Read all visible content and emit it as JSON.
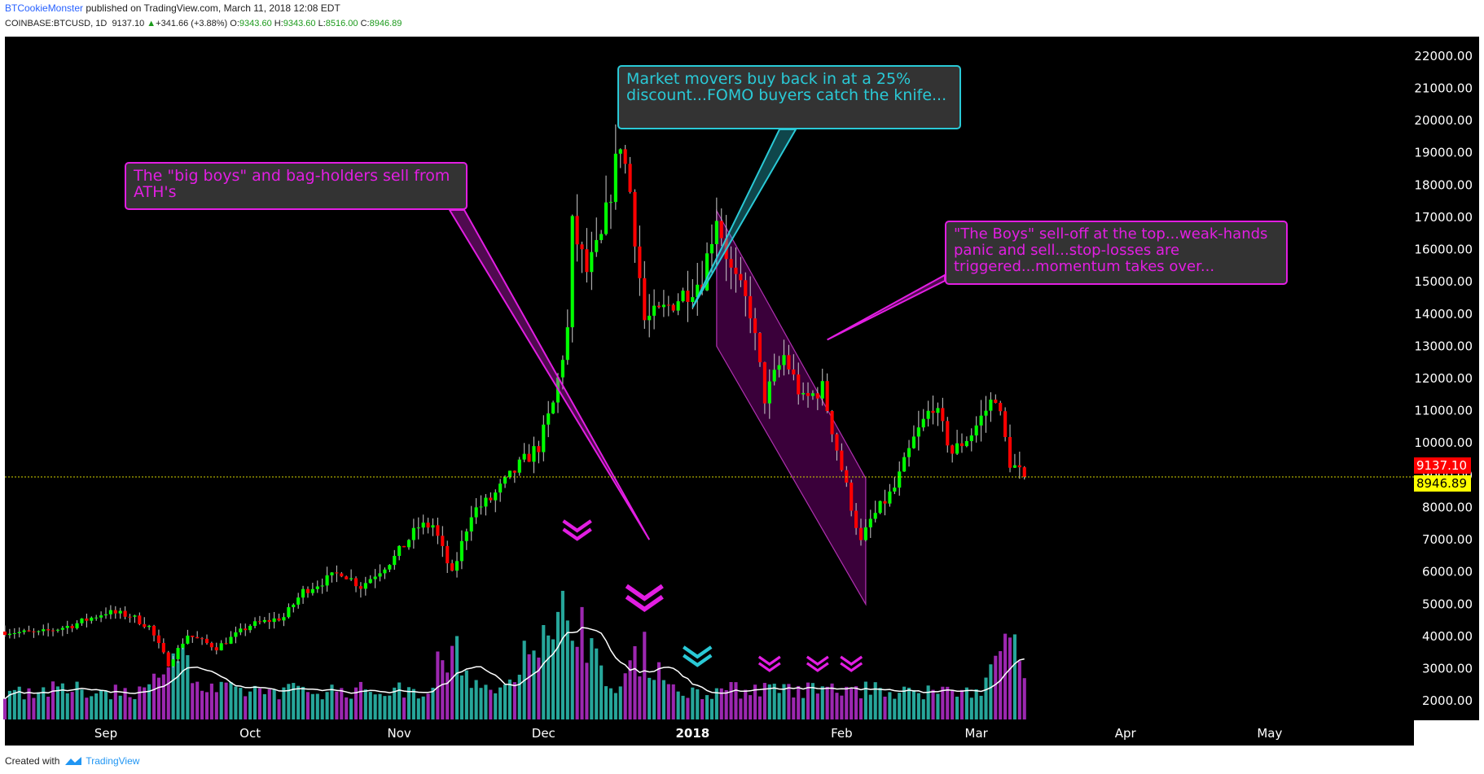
{
  "header": {
    "author": "BTCookieMonster",
    "published": " published on TradingView.com, March 11, 2018 12:08 EDT",
    "symbol": "COINBASE:BTCUSD, 1D",
    "last": "9137.10",
    "change_up_arrow": "▲",
    "change": "+341.66 (+3.88%)",
    "o_label": "O:",
    "o": "9343.60",
    "h_label": "H:",
    "h": "9343.60",
    "l_label": "L:",
    "l": "8516.00",
    "c_label": "C:",
    "c": "8946.89"
  },
  "footer": {
    "created_with": "Created with",
    "brand": "TradingView",
    "brand_icon": "tradingview-logo-icon"
  },
  "annotations": {
    "ath": "The \"big boys\" and bag-holders sell from ATH's",
    "buyback": "Market movers buy back in at a 25% discount...FOMO buyers catch the knife...",
    "selloff": "\"The Boys\" sell-off at the top...weak-hands panic and sell...stop-losses are triggered...momentum takes over..."
  },
  "price_tags": {
    "last": "9137.10",
    "close": "8946.89"
  },
  "colors": {
    "background": "#000000",
    "candle_up": "#00ff00",
    "candle_down": "#ff0000",
    "volume_up": "#26a69a",
    "volume_down": "#9c27b0",
    "magenta": "#e21ee2",
    "cyan": "#2ac9d6",
    "channel_fill": "#800080"
  },
  "chart_data": {
    "type": "candlestick",
    "symbol": "COINBASE:BTCUSD",
    "interval": "1D",
    "y_axis": {
      "ticks": [
        2000,
        3000,
        4000,
        5000,
        6000,
        7000,
        8000,
        9000,
        10000,
        11000,
        12000,
        13000,
        14000,
        15000,
        16000,
        17000,
        18000,
        19000,
        20000,
        21000,
        22000
      ],
      "tick_labels": [
        "2000.00",
        "3000.00",
        "4000.00",
        "5000.00",
        "6000.00",
        "7000.00",
        "8000.00",
        "9000.00",
        "10000.00",
        "11000.00",
        "12000.00",
        "13000.00",
        "14000.00",
        "15000.00",
        "16000.00",
        "17000.00",
        "18000.00",
        "19000.00",
        "20000.00",
        "21000.00",
        "22000.00"
      ],
      "range": [
        1400,
        22600
      ]
    },
    "x_axis": {
      "range": [
        "2017-08-11",
        "2018-05-31"
      ],
      "ticks": [
        {
          "label": "Sep",
          "date": "2017-09-01"
        },
        {
          "label": "Oct",
          "date": "2017-10-01"
        },
        {
          "label": "Nov",
          "date": "2017-11-01"
        },
        {
          "label": "Dec",
          "date": "2017-12-01"
        },
        {
          "label": "2018",
          "date": "2018-01-01",
          "bold": true
        },
        {
          "label": "Feb",
          "date": "2018-02-01"
        },
        {
          "label": "Mar",
          "date": "2018-03-01"
        },
        {
          "label": "Apr",
          "date": "2018-04-01"
        },
        {
          "label": "May",
          "date": "2018-05-01"
        }
      ]
    },
    "close_line": 8946.89,
    "price_path": [
      {
        "date": "2017-08-11",
        "close": 4150
      },
      {
        "date": "2017-08-18",
        "close": 4100
      },
      {
        "date": "2017-08-25",
        "close": 4350
      },
      {
        "date": "2017-09-01",
        "close": 4750
      },
      {
        "date": "2017-09-06",
        "close": 4650
      },
      {
        "date": "2017-09-10",
        "close": 4300
      },
      {
        "date": "2017-09-14",
        "close": 3150
      },
      {
        "date": "2017-09-18",
        "close": 4050
      },
      {
        "date": "2017-09-24",
        "close": 3650
      },
      {
        "date": "2017-10-01",
        "close": 4350
      },
      {
        "date": "2017-10-08",
        "close": 4600
      },
      {
        "date": "2017-10-12",
        "close": 5400
      },
      {
        "date": "2017-10-20",
        "close": 6000
      },
      {
        "date": "2017-10-24",
        "close": 5550
      },
      {
        "date": "2017-10-31",
        "close": 6450
      },
      {
        "date": "2017-11-05",
        "close": 7400
      },
      {
        "date": "2017-11-08",
        "close": 7450
      },
      {
        "date": "2017-11-12",
        "close": 5900
      },
      {
        "date": "2017-11-16",
        "close": 7850
      },
      {
        "date": "2017-11-20",
        "close": 8250
      },
      {
        "date": "2017-11-26",
        "close": 9300
      },
      {
        "date": "2017-11-30",
        "close": 9900
      },
      {
        "date": "2017-12-03",
        "close": 11200
      },
      {
        "date": "2017-12-06",
        "close": 13500
      },
      {
        "date": "2017-12-07",
        "close": 16700
      },
      {
        "date": "2017-12-10",
        "close": 15300
      },
      {
        "date": "2017-12-13",
        "close": 16300
      },
      {
        "date": "2017-12-17",
        "close": 19400
      },
      {
        "date": "2017-12-19",
        "close": 17800
      },
      {
        "date": "2017-12-22",
        "close": 13800
      },
      {
        "date": "2017-12-25",
        "close": 14000
      },
      {
        "date": "2017-12-29",
        "close": 14500
      },
      {
        "date": "2018-01-03",
        "close": 15100
      },
      {
        "date": "2018-01-06",
        "close": 17100
      },
      {
        "date": "2018-01-09",
        "close": 15300
      },
      {
        "date": "2018-01-13",
        "close": 14100
      },
      {
        "date": "2018-01-16",
        "close": 11400
      },
      {
        "date": "2018-01-20",
        "close": 12700
      },
      {
        "date": "2018-01-24",
        "close": 11300
      },
      {
        "date": "2018-01-28",
        "close": 11700
      },
      {
        "date": "2018-02-01",
        "close": 9200
      },
      {
        "date": "2018-02-05",
        "close": 6900
      },
      {
        "date": "2018-02-07",
        "close": 7600
      },
      {
        "date": "2018-02-12",
        "close": 8600
      },
      {
        "date": "2018-02-16",
        "close": 10100
      },
      {
        "date": "2018-02-20",
        "close": 11200
      },
      {
        "date": "2018-02-24",
        "close": 9700
      },
      {
        "date": "2018-02-28",
        "close": 10300
      },
      {
        "date": "2018-03-05",
        "close": 11500
      },
      {
        "date": "2018-03-08",
        "close": 9400
      },
      {
        "date": "2018-03-11",
        "close": 8946.89
      }
    ],
    "volume": {
      "max_label_ratio": 1,
      "peaks": [
        {
          "date": "2017-09-15",
          "rel": 0.95
        },
        {
          "date": "2017-11-12",
          "rel": 0.85
        },
        {
          "date": "2017-11-29",
          "rel": 1.15
        },
        {
          "date": "2017-12-07",
          "rel": 1.45
        },
        {
          "date": "2017-12-22",
          "rel": 0.85
        },
        {
          "date": "2018-02-06",
          "rel": 0.35
        },
        {
          "date": "2018-03-08",
          "rel": 0.85
        }
      ]
    },
    "channel": {
      "upper": [
        {
          "date": "2018-01-06",
          "price": 17200
        },
        {
          "date": "2018-02-06",
          "price": 8900
        }
      ],
      "lower": [
        {
          "date": "2018-01-06",
          "price": 13000
        },
        {
          "date": "2018-02-06",
          "price": 5000
        }
      ]
    },
    "sell_markers": [
      {
        "date": "2017-12-08",
        "color": "magenta",
        "size": "medium"
      },
      {
        "date": "2017-12-22",
        "color": "magenta",
        "size": "large"
      },
      {
        "date": "2018-01-02",
        "color": "cyan",
        "size": "medium"
      },
      {
        "date": "2018-01-17",
        "color": "magenta",
        "size": "small"
      },
      {
        "date": "2018-01-27",
        "color": "magenta",
        "size": "small"
      },
      {
        "date": "2018-02-03",
        "color": "magenta",
        "size": "small"
      }
    ]
  }
}
